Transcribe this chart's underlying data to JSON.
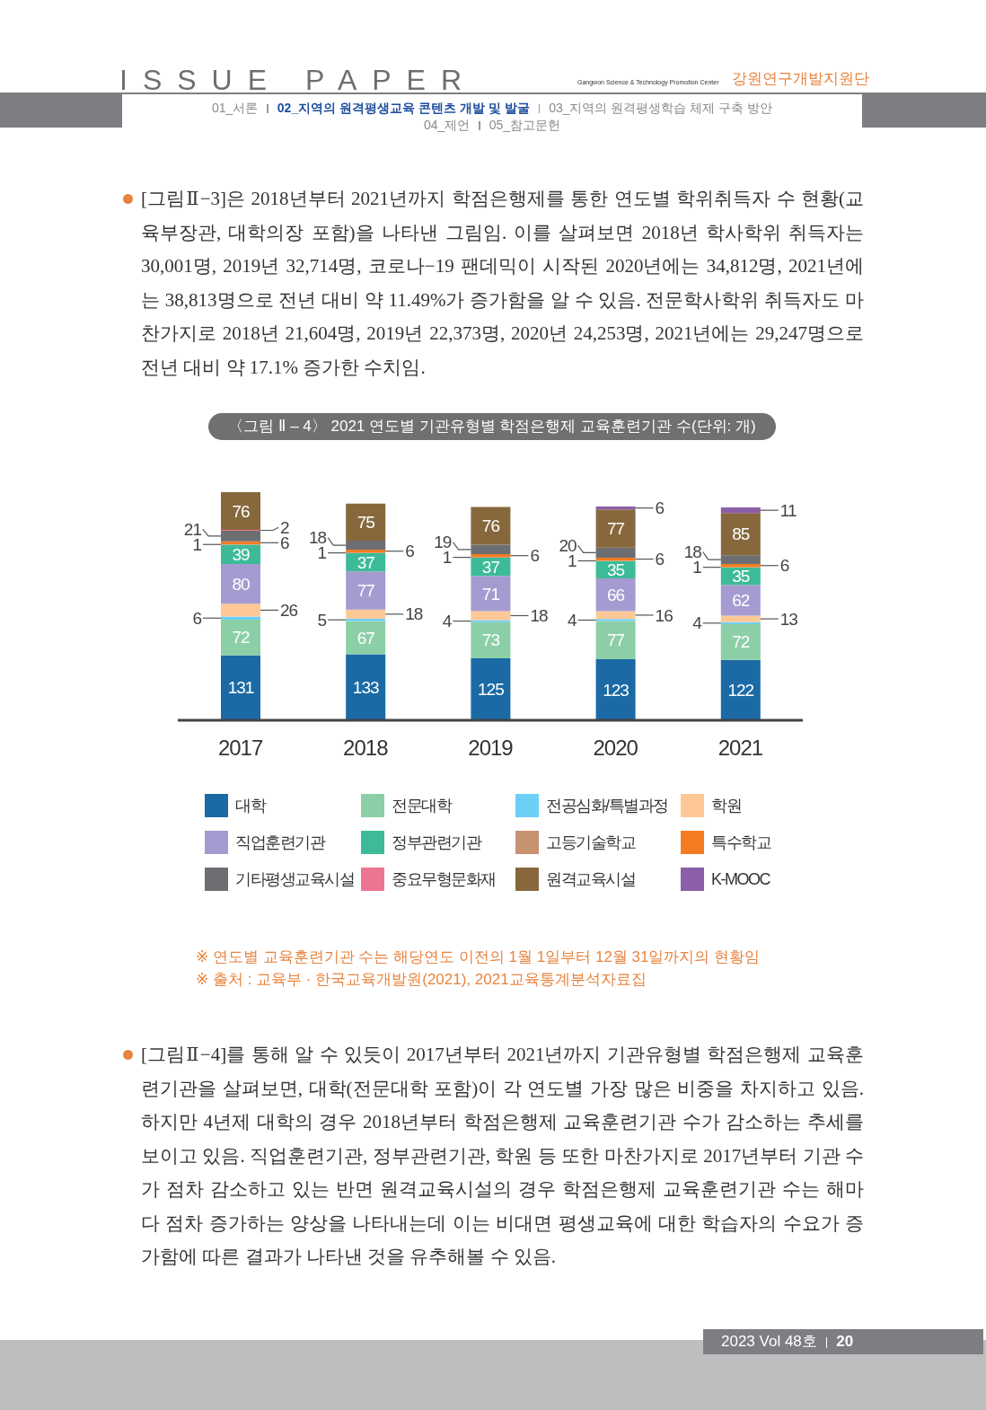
{
  "chart_data": {
    "type": "bar",
    "stacked": true,
    "data_labels": true,
    "legend": "bottom",
    "title": "〈그림 Ⅱ – 4〉 2021 연도별 기관유형별 학점은행제 교육훈련기관 수(단위: 개)",
    "categories": [
      "2017",
      "2018",
      "2019",
      "2020",
      "2021"
    ],
    "series": [
      {
        "name": "대학",
        "color": "#1b6aa5",
        "values": [
          131,
          133,
          125,
          123,
          122
        ]
      },
      {
        "name": "전문대학",
        "color": "#8ccfa7",
        "values": [
          72,
          67,
          73,
          77,
          72
        ]
      },
      {
        "name": "전공심화/특별과정",
        "color": "#6dcff6",
        "values": [
          6,
          5,
          4,
          4,
          4
        ]
      },
      {
        "name": "학원",
        "color": "#fdc896",
        "values": [
          26,
          18,
          18,
          16,
          13
        ]
      },
      {
        "name": "직업훈련기관",
        "color": "#a59bd0",
        "values": [
          80,
          77,
          71,
          66,
          62
        ]
      },
      {
        "name": "정부관련기관",
        "color": "#3dbb98",
        "values": [
          39,
          37,
          37,
          35,
          35
        ]
      },
      {
        "name": "고등기술학교",
        "color": "#c69272",
        "values": [
          1,
          1,
          1,
          1,
          1
        ]
      },
      {
        "name": "특수학교",
        "color": "#f37c22",
        "values": [
          6,
          6,
          6,
          6,
          6
        ]
      },
      {
        "name": "기타평생교육시설",
        "color": "#6d6e72",
        "values": [
          21,
          18,
          19,
          20,
          18
        ]
      },
      {
        "name": "중요무형문화재",
        "color": "#ee7591",
        "values": [
          2,
          null,
          null,
          null,
          null
        ]
      },
      {
        "name": "원격교육시설",
        "color": "#86683c",
        "values": [
          76,
          75,
          76,
          77,
          85
        ]
      },
      {
        "name": "K-MOOC",
        "color": "#8b5ea8",
        "values": [
          null,
          null,
          null,
          6,
          11
        ]
      }
    ],
    "annotations": [
      "ISSUE PAPER",
      "Gangwon Science & Technology Promotion Center",
      "강원연구개발지원단",
      "01_서론",
      "02_지역의 원격평생교육 콘텐츠 개발 및 발굴",
      "03_지역의 원격평생학습 체제 구축 방안",
      "04_제언",
      "05_참고문헌",
      "[그림Ⅱ−3]은 2018년부터 2021년까지 학점은행제를 통한 연도별 학위취득자 수 현황(교육부장관, 대학의장 포함)을 나타낸 그림임. 이를 살펴보면 2018년 학사학위 취득자는 30,001명, 2019년 32,714명, 코로나−19 팬데믹이 시작된 2020년에는 34,812명, 2021년에는 38,813명으로 전년 대비 약 11.49%가 증가함을 알 수 있음. 전문학사학위 취득자도 마찬가지로 2018년 21,604명, 2019년 22,373명, 2020년 24,253명, 2021년에는 29,247명으로 전년 대비 약 17.1% 증가한 수치임.",
      "※ 연도별 교육훈련기관 수는 해당연도 이전의 1월 1일부터 12월 31일까지의 현황임",
      "※ 출처 : 교육부 · 한국교육개발원(2021), 2021교육통계분석자료집",
      "[그림Ⅱ−4]를 통해 알 수 있듯이 2017년부터 2021년까지 기관유형별 학점은행제 교육훈련기관을 살펴보면, 대학(전문대학 포함)이 각 연도별 가장 많은 비중을 차지하고 있음. 하지만 4년제 대학의 경우 2018년부터 학점은행제 교육훈련기관 수가 감소하는 추세를 보이고 있음. 직업훈련기관, 정부관련기관, 학원 등 또한 마찬가지로 2017년부터 기관 수가 점차 감소하고 있는 반면 원격교육시설의 경우 학점은행제 교육훈련기관 수는 해마다 점차 증가하는 양상을 나타내는데 이는 비대면 평생교육에 대한 학습자의 수요가 증가함에 따른 결과가 나타낸 것을 유추해볼 수 있음.",
      "2023 Vol 48호",
      "20"
    ]
  }
}
